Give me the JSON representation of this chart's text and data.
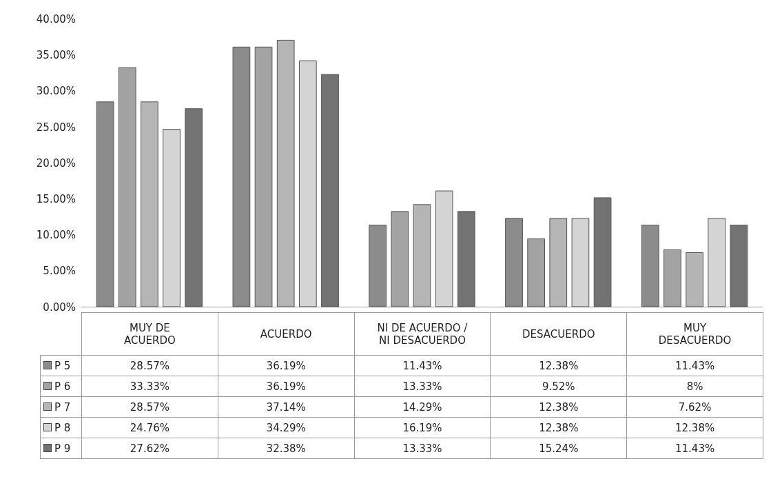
{
  "chart_data": {
    "type": "bar",
    "categories": [
      "MUY DE ACUERDO",
      "ACUERDO",
      "NI DE ACUERDO / NI DESACUERDO",
      "DESACUERDO",
      "MUY DESACUERDO"
    ],
    "series": [
      {
        "name": "P 5",
        "color": "#8c8c8c",
        "values": [
          28.57,
          36.19,
          11.43,
          12.38,
          11.43
        ],
        "value_labels": [
          "28.57%",
          "36.19%",
          "11.43%",
          "12.38%",
          "11.43%"
        ]
      },
      {
        "name": "P 6",
        "color": "#a3a3a3",
        "values": [
          33.33,
          36.19,
          13.33,
          9.52,
          8
        ],
        "value_labels": [
          "33.33%",
          "36.19%",
          "13.33%",
          "9.52%",
          "8%"
        ]
      },
      {
        "name": "P 7",
        "color": "#b5b5b5",
        "values": [
          28.57,
          37.14,
          14.29,
          12.38,
          7.62
        ],
        "value_labels": [
          "28.57%",
          "37.14%",
          "14.29%",
          "12.38%",
          "7.62%"
        ]
      },
      {
        "name": "P 8",
        "color": "#d4d4d4",
        "values": [
          24.76,
          34.29,
          16.19,
          12.38,
          12.38
        ],
        "value_labels": [
          "24.76%",
          "34.29%",
          "16.19%",
          "12.38%",
          "12.38%"
        ]
      },
      {
        "name": "P 9",
        "color": "#737373",
        "values": [
          27.62,
          32.38,
          13.33,
          15.24,
          11.43
        ],
        "value_labels": [
          "27.62%",
          "32.38%",
          "13.33%",
          "15.24%",
          "11.43%"
        ]
      }
    ],
    "ylim": [
      0,
      40
    ],
    "yticks": [
      {
        "value": 0,
        "label": "0.00%"
      },
      {
        "value": 5,
        "label": "5.00%"
      },
      {
        "value": 10,
        "label": "10.00%"
      },
      {
        "value": 15,
        "label": "15.00%"
      },
      {
        "value": 20,
        "label": "20.00%"
      },
      {
        "value": 25,
        "label": "25.00%"
      },
      {
        "value": 30,
        "label": "30.00%"
      },
      {
        "value": 35,
        "label": "35.00%"
      },
      {
        "value": 40,
        "label": "40.00%"
      }
    ],
    "legend": "bottom"
  }
}
